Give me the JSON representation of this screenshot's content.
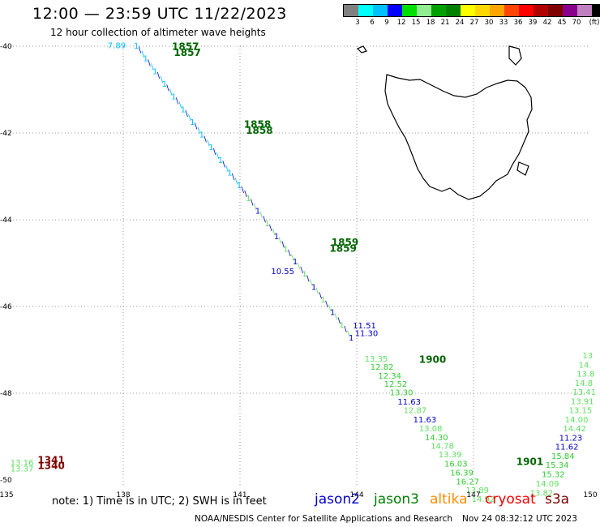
{
  "header": {
    "title": "12:00 — 23:59 UTC 11/22/2023",
    "subtitle": "12 hour collection of altimeter wave heights"
  },
  "scale": {
    "colors": [
      "#808080",
      "#00ffff",
      "#00bfff",
      "#0000ff",
      "#00e000",
      "#90ee90",
      "#00a000",
      "#008000",
      "#ffff00",
      "#ffd700",
      "#ffa500",
      "#ff4500",
      "#ff0000",
      "#b00000",
      "#800000",
      "#8b008b",
      "#c080c0",
      "#000000"
    ],
    "ticks": [
      "3",
      "6",
      "9",
      "12",
      "15",
      "18",
      "21",
      "24",
      "27",
      "30",
      "33",
      "36",
      "39",
      "42",
      "45",
      "70",
      "(ft)"
    ]
  },
  "axes": {
    "lon_labels": [
      "135",
      "138",
      "141",
      "144",
      "147",
      "150"
    ],
    "lat_labels": [
      "-40",
      "-42",
      "-44",
      "-46",
      "-48",
      "-50"
    ]
  },
  "track_labels": {
    "times": [
      {
        "text": "1857",
        "lon": 139.25,
        "lat": -40.08,
        "color": "#006400"
      },
      {
        "text": "1857",
        "lon": 139.3,
        "lat": -40.22,
        "color": "#006400"
      },
      {
        "text": "1858",
        "lon": 141.1,
        "lat": -41.88,
        "color": "#006400"
      },
      {
        "text": "1858",
        "lon": 141.15,
        "lat": -42.02,
        "color": "#006400"
      },
      {
        "text": "1859",
        "lon": 143.35,
        "lat": -44.6,
        "color": "#006400"
      },
      {
        "text": "1859",
        "lon": 143.3,
        "lat": -44.74,
        "color": "#006400"
      },
      {
        "text": "1900",
        "lon": 145.6,
        "lat": -47.3,
        "color": "#006400"
      },
      {
        "text": "1901",
        "lon": 148.1,
        "lat": -49.65,
        "color": "#006400"
      },
      {
        "text": "1341",
        "lon": 135.8,
        "lat": -49.62,
        "color": "#800000"
      },
      {
        "text": "1340",
        "lon": 135.8,
        "lat": -49.75,
        "color": "#800000"
      }
    ],
    "values": [
      {
        "text": "11.51",
        "lon": 143.9,
        "lat": -46.5,
        "color": "#0000cd"
      },
      {
        "text": "11.30",
        "lon": 143.95,
        "lat": -46.68,
        "color": "#0000cd"
      },
      {
        "text": "13.35",
        "lon": 144.2,
        "lat": -47.27,
        "color": "#60e060"
      },
      {
        "text": "12.82",
        "lon": 144.35,
        "lat": -47.46,
        "color": "#32cd32"
      },
      {
        "text": "12.34",
        "lon": 144.55,
        "lat": -47.66,
        "color": "#32cd32"
      },
      {
        "text": "12.52",
        "lon": 144.7,
        "lat": -47.85,
        "color": "#32cd32"
      },
      {
        "text": "13.30",
        "lon": 144.85,
        "lat": -48.05,
        "color": "#32cd32"
      },
      {
        "text": "11.63",
        "lon": 145.05,
        "lat": -48.26,
        "color": "#0000cd"
      },
      {
        "text": "12.87",
        "lon": 145.2,
        "lat": -48.46,
        "color": "#60e060"
      },
      {
        "text": "11.63",
        "lon": 145.45,
        "lat": -48.67,
        "color": "#0000cd"
      },
      {
        "text": "13.08",
        "lon": 145.6,
        "lat": -48.88,
        "color": "#60e060"
      },
      {
        "text": "14.30",
        "lon": 145.75,
        "lat": -49.08,
        "color": "#32cd32"
      },
      {
        "text": "14.78",
        "lon": 145.9,
        "lat": -49.28,
        "color": "#60e060"
      },
      {
        "text": "13.39",
        "lon": 146.1,
        "lat": -49.48,
        "color": "#60e060"
      },
      {
        "text": "16.03",
        "lon": 146.25,
        "lat": -49.69,
        "color": "#32cd32"
      },
      {
        "text": "16.39",
        "lon": 146.4,
        "lat": -49.9,
        "color": "#32cd32"
      },
      {
        "text": "16.27",
        "lon": 146.55,
        "lat": -50.1,
        "color": "#32cd32"
      },
      {
        "text": "13.89",
        "lon": 146.8,
        "lat": -50.3,
        "color": "#60e060"
      },
      {
        "text": "14.92",
        "lon": 146.95,
        "lat": -50.5,
        "color": "#60e060"
      },
      {
        "text": "13.82",
        "lon": 148.45,
        "lat": -50.36,
        "color": "#60e060"
      },
      {
        "text": "14.09",
        "lon": 148.6,
        "lat": -50.15,
        "color": "#60e060"
      },
      {
        "text": "15.32",
        "lon": 148.75,
        "lat": -49.93,
        "color": "#32cd32"
      },
      {
        "text": "15.34",
        "lon": 148.85,
        "lat": -49.72,
        "color": "#32cd32"
      },
      {
        "text": "15.84",
        "lon": 149.0,
        "lat": -49.51,
        "color": "#32cd32"
      },
      {
        "text": "11.62",
        "lon": 149.1,
        "lat": -49.3,
        "color": "#0000cd"
      },
      {
        "text": "11.23",
        "lon": 149.2,
        "lat": -49.09,
        "color": "#0000cd"
      },
      {
        "text": "14.42",
        "lon": 149.3,
        "lat": -48.88,
        "color": "#60e060"
      },
      {
        "text": "14.00",
        "lon": 149.35,
        "lat": -48.67,
        "color": "#60e060"
      },
      {
        "text": "13.15",
        "lon": 149.45,
        "lat": -48.46,
        "color": "#60e060"
      },
      {
        "text": "13.91",
        "lon": 149.5,
        "lat": -48.25,
        "color": "#60e060"
      },
      {
        "text": "13.41",
        "lon": 149.55,
        "lat": -48.04,
        "color": "#60e060"
      },
      {
        "text": "14.8",
        "lon": 149.6,
        "lat": -47.83,
        "color": "#60e060"
      },
      {
        "text": "13.8",
        "lon": 149.65,
        "lat": -47.62,
        "color": "#60e060"
      },
      {
        "text": "14.",
        "lon": 149.7,
        "lat": -47.41,
        "color": "#60e060"
      },
      {
        "text": "13",
        "lon": 149.8,
        "lat": -47.2,
        "color": "#60e060"
      },
      {
        "text": "13.16",
        "lon": 135.1,
        "lat": -49.66,
        "color": "#60e060"
      },
      {
        "text": "13.37",
        "lon": 135.1,
        "lat": -49.8,
        "color": "#60e060"
      },
      {
        "text": "10.55",
        "lon": 141.8,
        "lat": -45.25,
        "color": "#0000cd"
      },
      {
        "text": "7.89",
        "lon": 137.6,
        "lat": -40.05,
        "color": "#00bfff"
      }
    ]
  },
  "footer": {
    "note": "note:  1) Time is in UTC;  2) SWH is in feet",
    "missions": [
      {
        "name": "jason2",
        "color": "#0000cd"
      },
      {
        "name": "jason3",
        "color": "#008000"
      },
      {
        "name": "altika",
        "color": "#ff8c00"
      },
      {
        "name": "cryosat",
        "color": "#ff0000"
      },
      {
        "name": "s3a",
        "color": "#800000"
      }
    ],
    "credit": "NOAA/NESDIS Center for Satellite Applications and Research",
    "timestamp": "Nov 24 08:32:12 UTC 2023"
  }
}
